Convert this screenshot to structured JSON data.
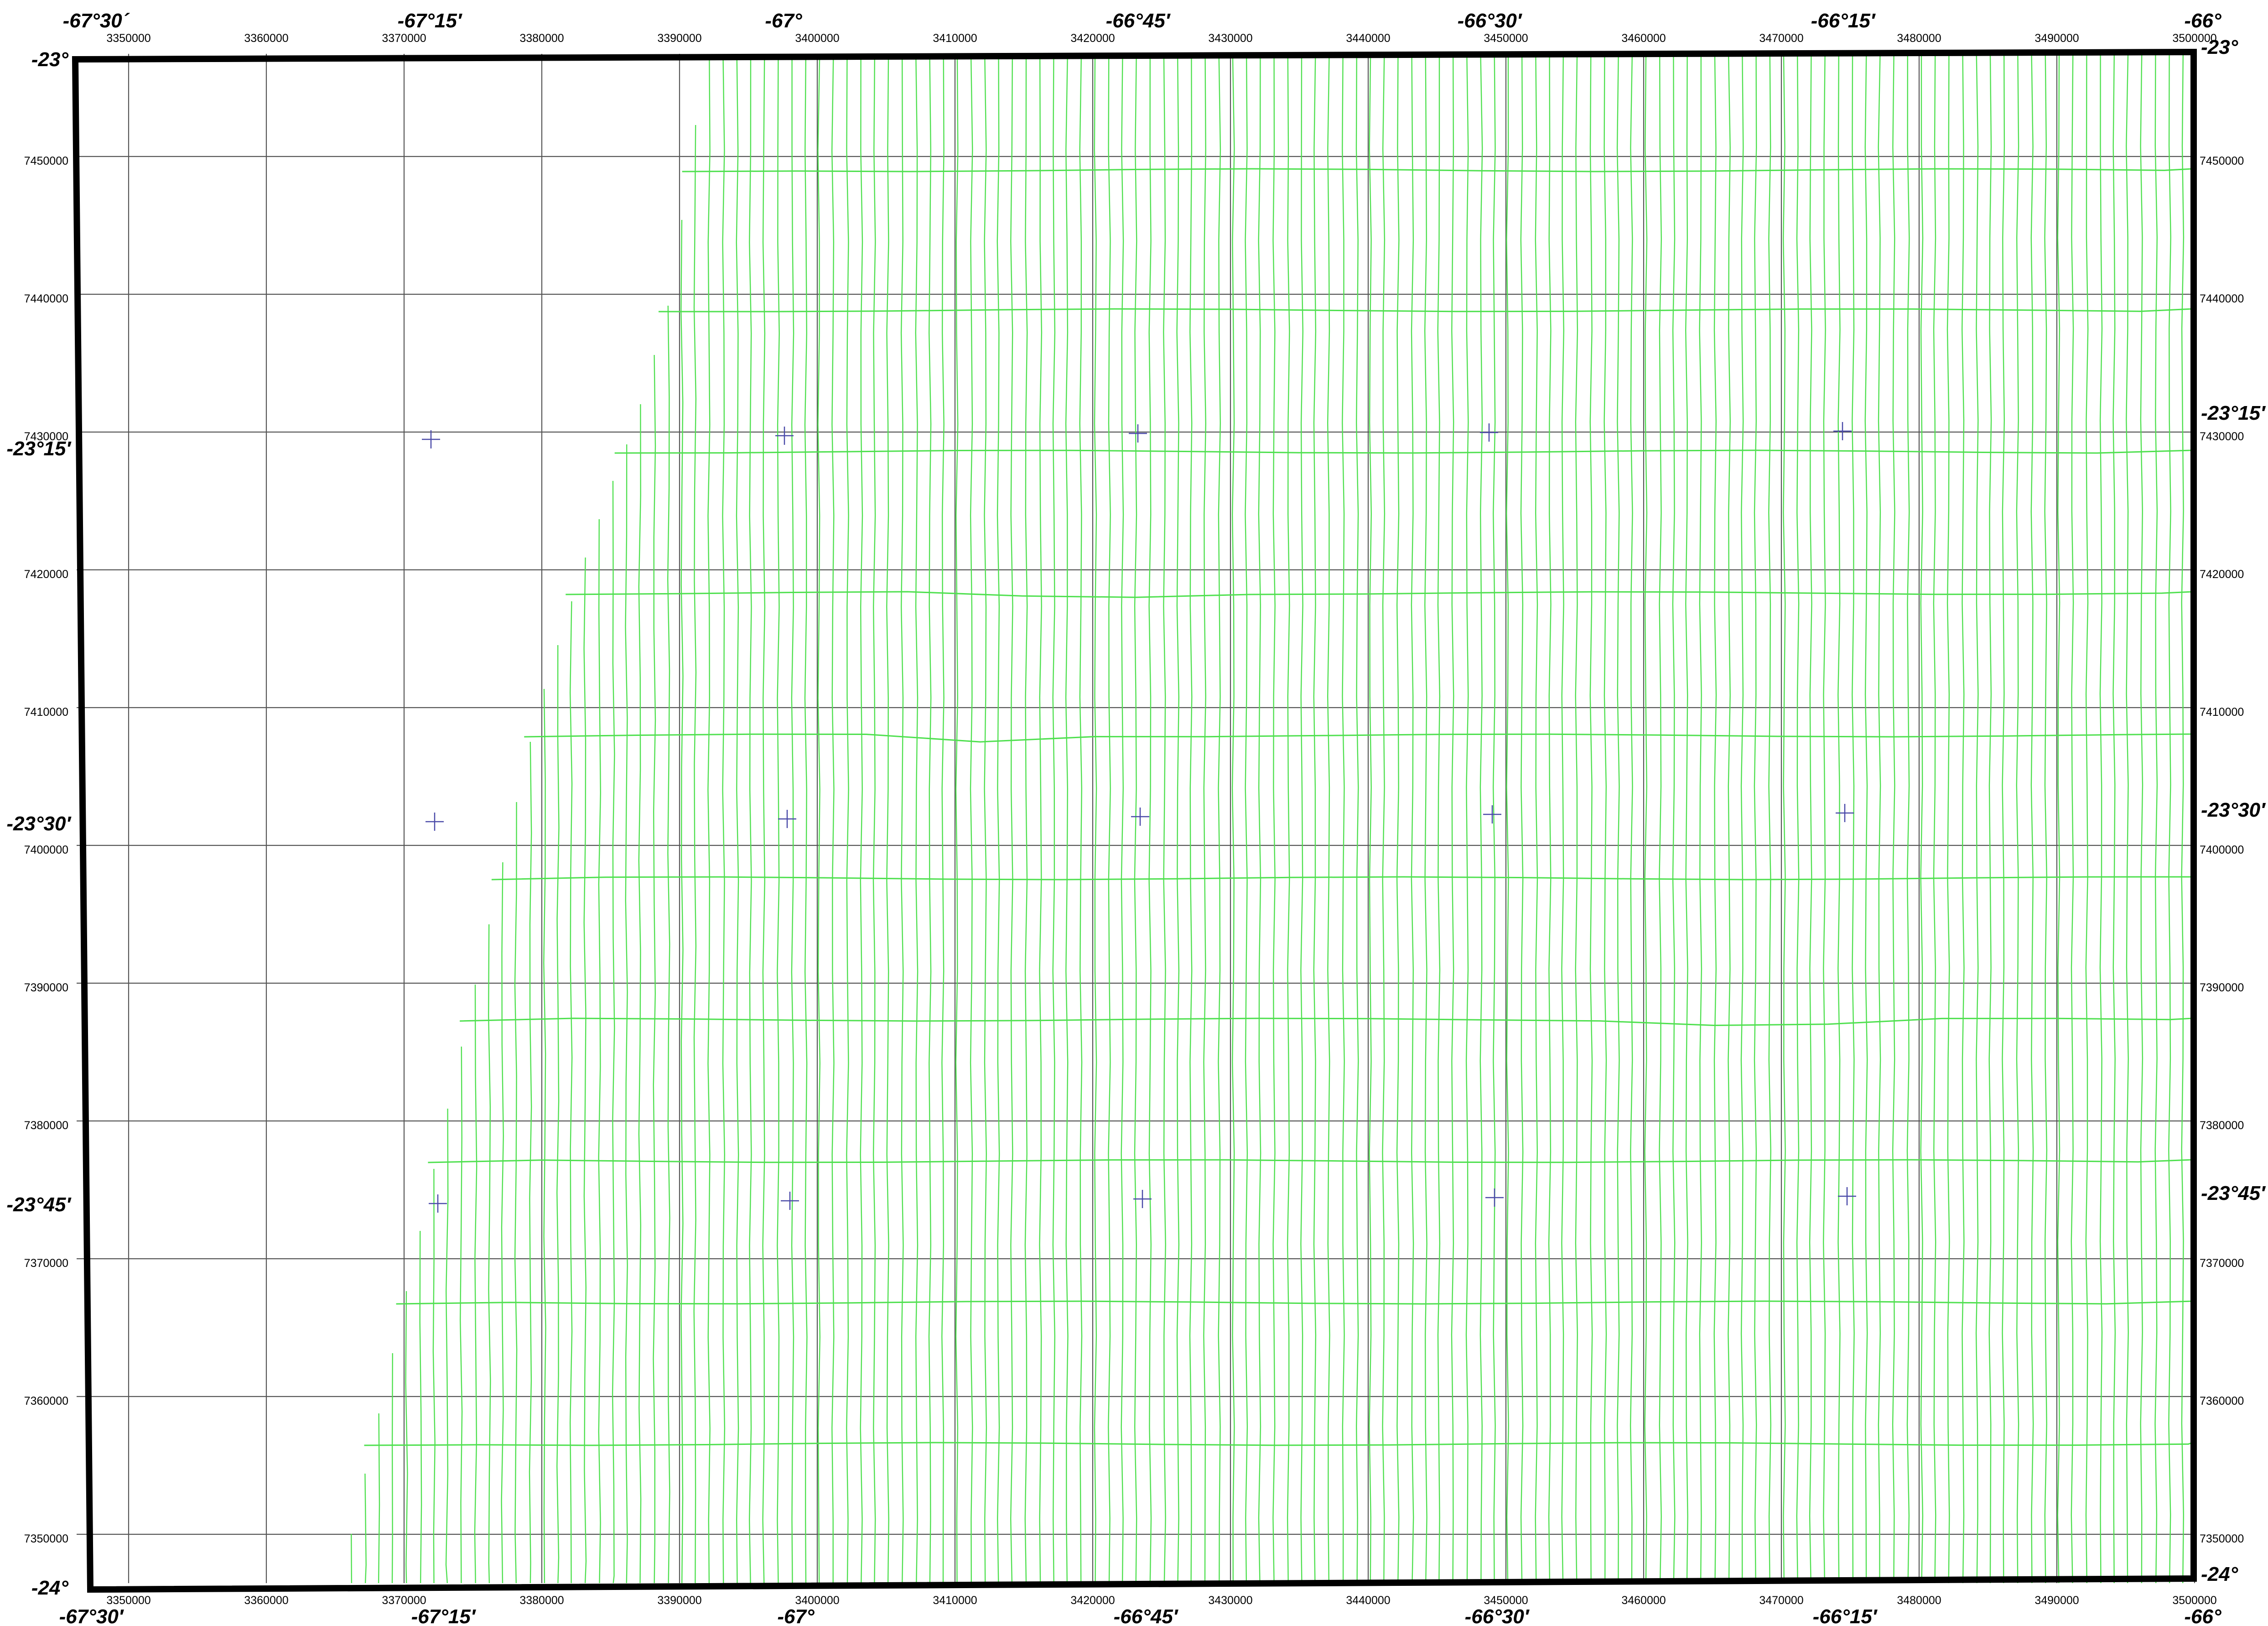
{
  "map": {
    "frame_color": "#000000",
    "grid_color": "#555555",
    "flightline_color": "#4fe04f",
    "cross_marker_color": "#4a4aa8"
  },
  "longitude_labels_top": [
    "-67°30´",
    "-67°15′",
    "-67°",
    "-66°45′",
    "-66°30′",
    "-66°15′",
    "-66°"
  ],
  "longitude_labels_bottom": [
    "-67°30′",
    "-67°15′",
    "-67°",
    "-66°45′",
    "-66°30′",
    "-66°15′",
    "-66°"
  ],
  "latitude_labels_left": [
    "-23°",
    "-23°15′",
    "-23°30′",
    "-23°45′",
    "-24°"
  ],
  "latitude_labels_right": [
    "-23°",
    "-23°15′",
    "-23°30′",
    "-23°45′",
    "-24°"
  ],
  "easting_labels": [
    "3350000",
    "3360000",
    "3370000",
    "3380000",
    "3390000",
    "3400000",
    "3410000",
    "3420000",
    "3430000",
    "3440000",
    "3450000",
    "3460000",
    "3470000",
    "3480000",
    "3490000",
    "3500000"
  ],
  "northing_labels": [
    "7450000",
    "7440000",
    "7430000",
    "7420000",
    "7410000",
    "7400000",
    "7390000",
    "7380000",
    "7370000",
    "7360000",
    "7350000"
  ]
}
